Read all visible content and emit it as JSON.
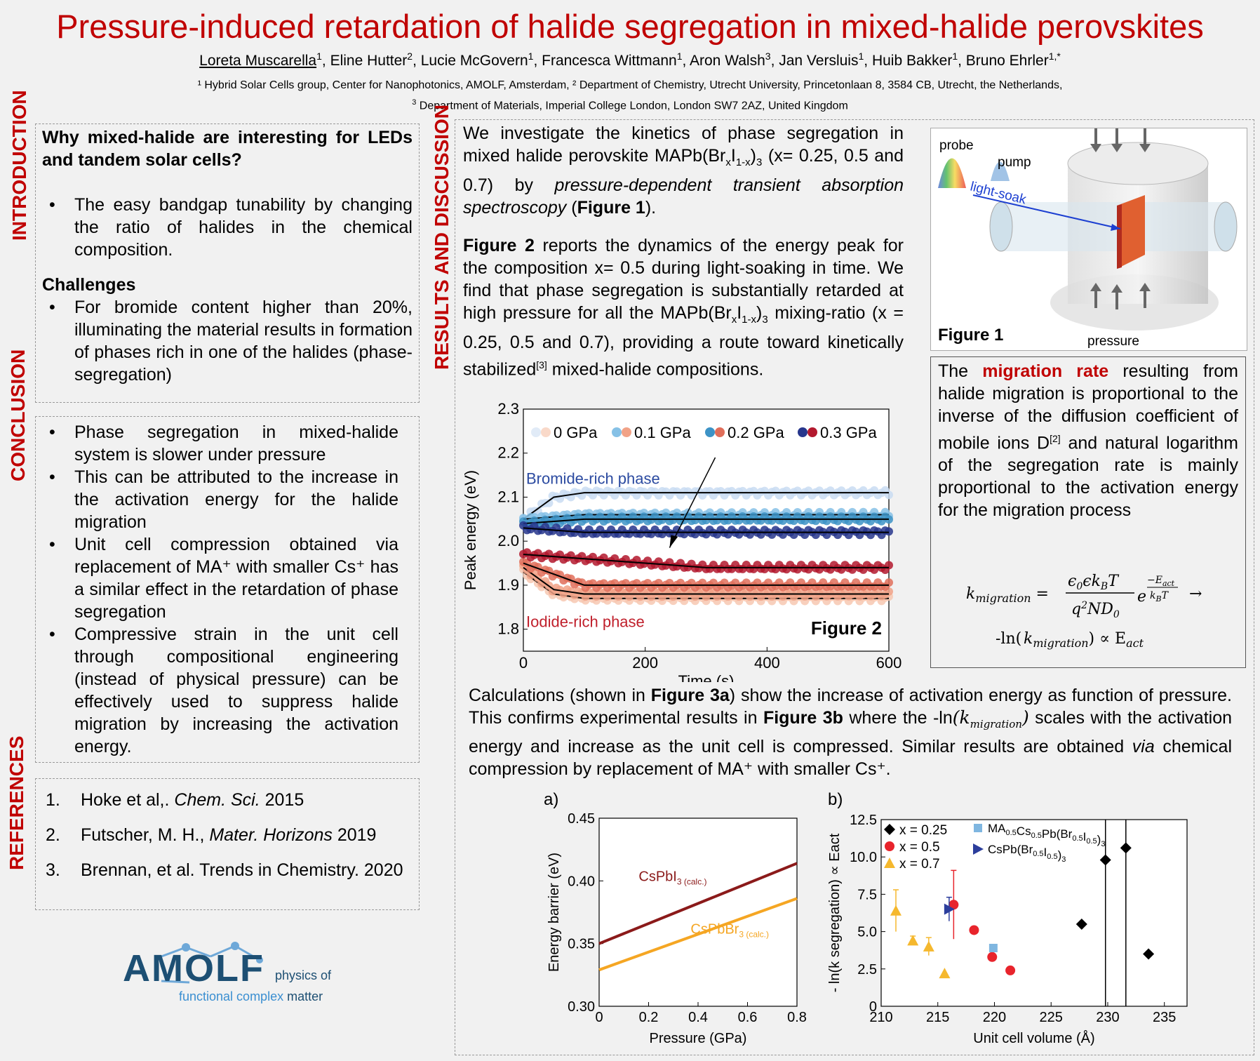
{
  "header": {
    "title": "Pressure-induced retardation of halide segregation in mixed-halide perovskites",
    "authors": [
      {
        "name": "Loreta Muscarella",
        "sup": "1",
        "main": true
      },
      {
        "name": "Eline Hutter",
        "sup": "2"
      },
      {
        "name": "Lucie McGovern",
        "sup": "1"
      },
      {
        "name": "Francesca Wittmann",
        "sup": "1"
      },
      {
        "name": "Aron Walsh",
        "sup": "3"
      },
      {
        "name": "Jan Versluis",
        "sup": "1"
      },
      {
        "name": "Huib Bakker",
        "sup": "1"
      },
      {
        "name": "Bruno Ehrler",
        "sup": "1,*"
      }
    ],
    "affiliation_line1": "¹ Hybrid Solar Cells group, Center for Nanophotonics, AMOLF, Amsterdam, ² Department of Chemistry, Utrecht University,  Princetonlaan 8, 3584 CB, Utrecht,  the Netherlands,",
    "affiliation_line2_sup": "3",
    "affiliation_line2": " Department of Materials,  Imperial College London, London SW7 2AZ, United Kingdom"
  },
  "sections": {
    "introduction_label": "INTRODUCTION",
    "conclusion_label": "CONCLUSION",
    "references_label": "REFERENCES",
    "results_label": "RESULTS AND DISCUSSION"
  },
  "introduction": {
    "question": "Why mixed-halide are interesting for LEDs and tandem solar cells?",
    "bullet1": "The easy bandgap tunability by changing the ratio of halides in the chemical composition.",
    "challenges_heading": "Challenges",
    "bullet2": "For bromide content higher than 20%, illuminating the material results in formation of phases rich in one of the halides (phase-segregation)"
  },
  "conclusion": {
    "bullets": [
      "Phase segregation in mixed-halide system is slower under pressure",
      "This can be attributed to the increase in the activation energy for the halide migration",
      "Unit cell compression obtained via replacement of MA⁺ with smaller Cs⁺ has a similar effect in the retardation of phase segregation",
      "Compressive strain in the unit cell through compositional engineering (instead of physical pressure) can be effectively used to suppress halide migration by increasing the activation energy."
    ]
  },
  "references": {
    "items": [
      {
        "n": "1.",
        "pre": "Hoke et al,. ",
        "ital": "Chem. Sci.",
        "post": " 2015"
      },
      {
        "n": "2.",
        "pre": "Futscher, M. H., ",
        "ital": "Mater. Horizons",
        "post": " 2019"
      },
      {
        "n": "3.",
        "pre": "Brennan, et al. Trends in Chemistry. 2020",
        "ital": "",
        "post": ""
      }
    ]
  },
  "logo": {
    "letters": "AMOLF",
    "line1": "physics of",
    "line2a": "functional complex",
    "line2b": " matter"
  },
  "results": {
    "p1_a": "We investigate the kinetics of phase segregation in mixed halide perovskite MAPb(Br",
    "p1_b": "and 0.7) by ",
    "p1_ital": "pressure-dependent transient absorption spectroscopy",
    "p1_c": " (",
    "p1_bold": "Figure 1",
    "p1_d": ").",
    "p2_bold": "Figure 2",
    "p2_a": " reports the dynamics of the energy peak for the composition x= 0.5 during light-soaking in time. We find that phase segregation is substantially retarded at high pressure for all the MAPb(Br",
    "p2_b": " mixing-ratio (x = 0.25, 0.5 and 0.7), providing a route toward kinetically stabilized",
    "p2_sup": "[3]",
    "p2_c": " mixed-halide compositions.",
    "calc_a": "Calculations (shown in ",
    "calc_b1": "Figure 3a",
    "calc_b": ") show the increase of activation energy as function of pressure. This confirms experimental results in ",
    "calc_b2": "Figure 3b",
    "calc_c": " where the -ln",
    "calc_d": " scales with the activation energy and increase as the unit cell is compressed. Similar results are obtained ",
    "calc_via": "via",
    "calc_e": " chemical compression by replacement of MA⁺ with smaller Cs⁺."
  },
  "migration": {
    "a": "The ",
    "highlight": "migration rate",
    "b": " resulting from halide migration is proportional to the inverse of the diffusion coefficient of mobile ions D",
    "sup": "[2]",
    "c": " and natural logarithm of the segregation rate is mainly proportional to the activation energy for the migration process"
  },
  "figure1": {
    "label": "Figure 1",
    "probe": "probe",
    "pump": "pump",
    "lightsoak": "light-soak",
    "pressure": "pressure"
  },
  "colors": {
    "accent": "#c00000",
    "axis": "#000000"
  },
  "chart_data": [
    {
      "type": "scatter",
      "id": "figure2",
      "title": "Figure 2",
      "xlabel": "Time (s)",
      "ylabel": "Peak energy (eV)",
      "xlim": [
        0,
        600
      ],
      "ylim": [
        1.75,
        2.3
      ],
      "xticks": [
        0,
        200,
        400,
        600
      ],
      "yticks": [
        1.8,
        1.9,
        2.0,
        2.1,
        2.2,
        2.3
      ],
      "legend": [
        "0 GPa",
        "0.1 GPa",
        "0.2 GPa",
        "0.3 GPa"
      ],
      "annotations": [
        "Bromide-rich phase",
        "Iodide-rich phase"
      ],
      "series": [
        {
          "name": "0 GPa",
          "phase": "Bromide-rich",
          "color": "#c9dcf2",
          "values": [
            [
              0,
              2.05
            ],
            [
              50,
              2.1
            ],
            [
              100,
              2.11
            ],
            [
              300,
              2.11
            ],
            [
              600,
              2.11
            ]
          ]
        },
        {
          "name": "0.1 GPa",
          "phase": "Bromide-rich",
          "color": "#86c1e6",
          "values": [
            [
              0,
              2.05
            ],
            [
              100,
              2.06
            ],
            [
              300,
              2.06
            ],
            [
              600,
              2.06
            ]
          ]
        },
        {
          "name": "0.2 GPa",
          "phase": "Bromide-rich",
          "color": "#3d93c6",
          "values": [
            [
              0,
              2.04
            ],
            [
              100,
              2.05
            ],
            [
              300,
              2.05
            ],
            [
              600,
              2.05
            ]
          ]
        },
        {
          "name": "0.3 GPa",
          "phase": "Bromide-rich",
          "color": "#27368c",
          "values": [
            [
              0,
              2.03
            ],
            [
              100,
              2.02
            ],
            [
              300,
              2.02
            ],
            [
              600,
              2.02
            ]
          ]
        },
        {
          "name": "0 GPa",
          "phase": "Iodide-rich",
          "color": "#f7c8b2",
          "values": [
            [
              0,
              1.93
            ],
            [
              50,
              1.88
            ],
            [
              100,
              1.87
            ],
            [
              300,
              1.87
            ],
            [
              600,
              1.87
            ]
          ]
        },
        {
          "name": "0.1 GPa",
          "phase": "Iodide-rich",
          "color": "#f1a287",
          "values": [
            [
              0,
              1.94
            ],
            [
              50,
              1.89
            ],
            [
              100,
              1.88
            ],
            [
              300,
              1.88
            ],
            [
              600,
              1.88
            ]
          ]
        },
        {
          "name": "0.2 GPa",
          "phase": "Iodide-rich",
          "color": "#e06e5a",
          "values": [
            [
              0,
              1.95
            ],
            [
              100,
              1.9
            ],
            [
              300,
              1.9
            ],
            [
              600,
              1.9
            ]
          ]
        },
        {
          "name": "0.3 GPa",
          "phase": "Iodide-rich",
          "color": "#b3192e",
          "values": [
            [
              0,
              1.97
            ],
            [
              100,
              1.96
            ],
            [
              300,
              1.94
            ],
            [
              600,
              1.94
            ]
          ]
        }
      ]
    },
    {
      "type": "line",
      "id": "figure3a",
      "title": "a)",
      "xlabel": "Pressure (GPa)",
      "ylabel": "Energy barrier (eV)",
      "xlim": [
        0,
        0.8
      ],
      "ylim": [
        0.3,
        0.45
      ],
      "xticks": [
        0,
        0.2,
        0.4,
        0.6,
        0.8
      ],
      "yticks": [
        0.3,
        0.35,
        0.4,
        0.45
      ],
      "series": [
        {
          "name": "CsPbI",
          "sub": "3 (calc.)",
          "color": "#8b1a1a",
          "x": [
            0,
            0.8
          ],
          "values": [
            0.35,
            0.414
          ]
        },
        {
          "name": "CsPbBr",
          "sub": "3 (calc.)",
          "color": "#f5a623",
          "x": [
            0,
            0.8
          ],
          "values": [
            0.329,
            0.386
          ]
        }
      ]
    },
    {
      "type": "scatter",
      "id": "figure3b",
      "title": "b)",
      "xlabel": "Unit cell volume (Å)",
      "ylabel": "- ln(k segregation) ∝ Eact",
      "xlim": [
        210,
        237
      ],
      "ylim": [
        0,
        12.5
      ],
      "xticks": [
        210,
        215,
        220,
        225,
        230,
        235
      ],
      "yticks": [
        0,
        2.5,
        5.0,
        7.5,
        10.0,
        12.5
      ],
      "ytick_labels": [
        "0",
        "2.5",
        "5.0",
        "7.5",
        "10.0",
        "12.5"
      ],
      "vlines": [
        229.8,
        231.6
      ],
      "legend": [
        "x = 0.25",
        "x = 0.5",
        "x = 0.7",
        "MA0.5Cs0.5Pb(Br0.5I0.5)3",
        "CsPb(Br0.5I0.5)3"
      ],
      "series": [
        {
          "name": "x = 0.25",
          "marker": "diamond",
          "color": "#000000",
          "points": [
            [
              227.7,
              5.5
            ],
            [
              229.8,
              9.8
            ],
            [
              231.6,
              10.6
            ],
            [
              233.6,
              3.5
            ]
          ]
        },
        {
          "name": "x = 0.5",
          "marker": "circle",
          "color": "#e8242c",
          "points": [
            [
              216.4,
              6.8
            ],
            [
              218.2,
              5.1
            ],
            [
              219.8,
              3.3
            ],
            [
              221.4,
              2.4
            ]
          ],
          "errors": [
            2.3,
            0,
            0,
            0
          ]
        },
        {
          "name": "x = 0.7",
          "marker": "triangle",
          "color": "#f5b82e",
          "points": [
            [
              211.3,
              6.4
            ],
            [
              212.8,
              4.4
            ],
            [
              214.2,
              4.0
            ],
            [
              215.6,
              2.2
            ]
          ],
          "errors": [
            1.4,
            0.3,
            0.6,
            0
          ]
        },
        {
          "name": "MA0.5Cs0.5Pb(Br0.5I0.5)3",
          "marker": "square",
          "color": "#7fb6e0",
          "points": [
            [
              219.9,
              3.9
            ]
          ]
        },
        {
          "name": "CsPb(Br0.5I0.5)3",
          "marker": "triangle-right",
          "color": "#2c3e9c",
          "points": [
            [
              216.0,
              6.5
            ]
          ],
          "errors": [
            0.8
          ]
        }
      ]
    }
  ]
}
